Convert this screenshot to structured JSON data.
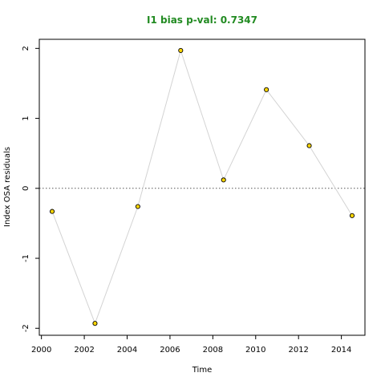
{
  "chart_data": {
    "type": "scatter",
    "title": "I1 bias p-val: 0.7347",
    "title_color": "#228B22",
    "xlabel": "Time",
    "ylabel": "Index OSA residuals",
    "xlim": [
      1999.9,
      2015.1
    ],
    "ylim": [
      -2.1,
      2.13
    ],
    "x_ticks": [
      2000,
      2002,
      2004,
      2006,
      2008,
      2010,
      2012,
      2014
    ],
    "y_ticks": [
      -2,
      -1,
      0,
      1,
      2
    ],
    "reference_line": {
      "y": 0,
      "style": "dotted",
      "color": "#555555"
    },
    "line_color": "#d3d3d3",
    "point_fill": "#FFD700",
    "point_stroke": "#000000",
    "grid": false,
    "series": [
      {
        "x": [
          2000.5,
          2002.5,
          2004.5,
          2006.5,
          2008.5,
          2010.5,
          2012.5,
          2014.5
        ],
        "y": [
          -0.33,
          -1.93,
          -0.26,
          1.97,
          0.12,
          1.41,
          0.61,
          -0.39
        ]
      }
    ]
  }
}
